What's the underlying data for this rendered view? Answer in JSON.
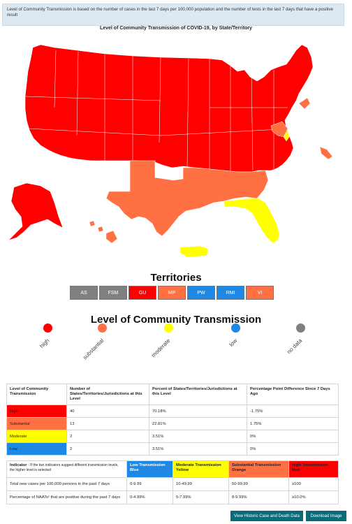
{
  "note": "Level of Community Transmission is based on the number of cases in the last 7 days per 100,000 population and the number of tests in the last 7 days that have a positive result",
  "map_title": "Level of Community Transmission of COVID-19, by State/Territory",
  "colors": {
    "high": "#ff0000",
    "substantial": "#ff7043",
    "moderate": "#ffff00",
    "low": "#1e88e5",
    "no_data": "#808080"
  },
  "territories": {
    "title": "Territories",
    "items": [
      {
        "label": "AS",
        "level": "no_data"
      },
      {
        "label": "FSM",
        "level": "no_data"
      },
      {
        "label": "GU",
        "level": "high"
      },
      {
        "label": "MP",
        "level": "substantial"
      },
      {
        "label": "PW",
        "level": "low"
      },
      {
        "label": "RMI",
        "level": "low"
      },
      {
        "label": "VI",
        "level": "substantial"
      }
    ]
  },
  "legend": {
    "title": "Level of Community Transmission",
    "items": [
      {
        "label": "high",
        "level": "high"
      },
      {
        "label": "substantial",
        "level": "substantial"
      },
      {
        "label": "moderate",
        "level": "moderate"
      },
      {
        "label": "low",
        "level": "low"
      },
      {
        "label": "no data",
        "level": "no_data"
      }
    ]
  },
  "level_table": {
    "headers": [
      "Level of Community Transmission",
      "Number of States/Territories/Jurisdictions at this Level",
      "Percent of States/Territories/Jurisdictions at this Level",
      "Percentage Point Difference Since 7 Days Ago"
    ],
    "rows": [
      {
        "level": "High",
        "key": "high",
        "count": "40",
        "percent": "70.18%",
        "diff": "-1.75%"
      },
      {
        "level": "Substantial",
        "key": "substantial",
        "count": "13",
        "percent": "22.81%",
        "diff": "1.75%"
      },
      {
        "level": "Moderate",
        "key": "moderate",
        "count": "2",
        "percent": "3.51%",
        "diff": "0%"
      },
      {
        "level": "Low",
        "key": "low",
        "count": "2",
        "percent": "3.51%",
        "diff": "0%"
      }
    ]
  },
  "indicator_table": {
    "header_indicator": "Indicator",
    "header_indicator_note": "- If the two indicators suggest different transmission levels, the higher level is selected",
    "headers": [
      {
        "line1": "Low Transmission",
        "line2": "Blue",
        "key": "low"
      },
      {
        "line1": "Moderate Transmission",
        "line2": "Yellow",
        "key": "moderate"
      },
      {
        "line1": "Substantial Transmission",
        "line2": "Orange",
        "key": "substantial"
      },
      {
        "line1": "High Transmission",
        "line2": "Red",
        "key": "high"
      }
    ],
    "rows": [
      {
        "label": "Total new cases per 100,000 persons in the past 7 days",
        "values": [
          "0-9.99",
          "10-49.99",
          "50-99.99",
          "≥100"
        ]
      },
      {
        "label": "Percentage of NAATs¹ that are positive during the past 7 days",
        "values": [
          "0-4.99%",
          "5-7.99%",
          "8-9.99%",
          "≥10.0%"
        ]
      }
    ]
  },
  "buttons": {
    "historic": "View Historic Case and Death Data",
    "download": "Download Image"
  }
}
